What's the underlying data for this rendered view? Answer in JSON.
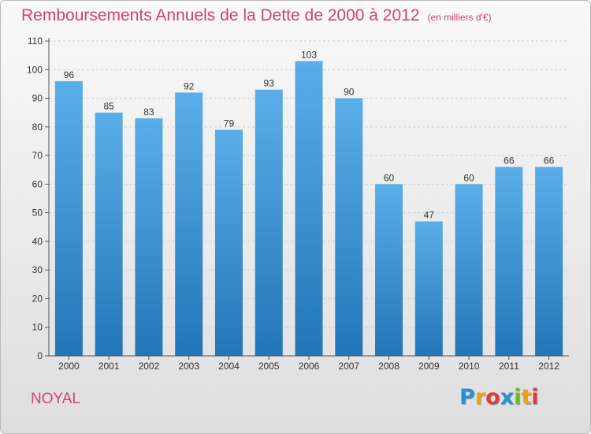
{
  "header": {
    "title": "Remboursements Annuels de la Dette de 2000 à 2012",
    "unit": "(en milliers d'€)"
  },
  "footer": {
    "commune": "NOYAL",
    "logo_text": "Proxiti",
    "logo_letters": [
      {
        "ch": "P",
        "color": "#2a8fd0"
      },
      {
        "ch": "r",
        "color": "#f0a020"
      },
      {
        "ch": "o",
        "color": "#e23a3a"
      },
      {
        "ch": "x",
        "color": "#2a8fd0"
      },
      {
        "ch": "i",
        "color": "#70b830"
      },
      {
        "ch": "t",
        "color": "#f0a020"
      },
      {
        "ch": "i",
        "color": "#e23a3a"
      }
    ]
  },
  "chart_data": {
    "type": "bar",
    "title": "Remboursements Annuels de la Dette de 2000 à 2012",
    "categories": [
      "2000",
      "2001",
      "2002",
      "2003",
      "2004",
      "2005",
      "2006",
      "2007",
      "2008",
      "2009",
      "2010",
      "2011",
      "2012"
    ],
    "values": [
      96,
      85,
      83,
      92,
      79,
      93,
      103,
      90,
      60,
      47,
      60,
      66,
      66
    ],
    "ylim": [
      0,
      110
    ],
    "yticks": [
      0,
      10,
      20,
      30,
      40,
      50,
      60,
      70,
      80,
      90,
      100,
      110
    ],
    "grid": true,
    "bar_color_top": "#5aaee8",
    "bar_color_bottom": "#2176b8"
  }
}
